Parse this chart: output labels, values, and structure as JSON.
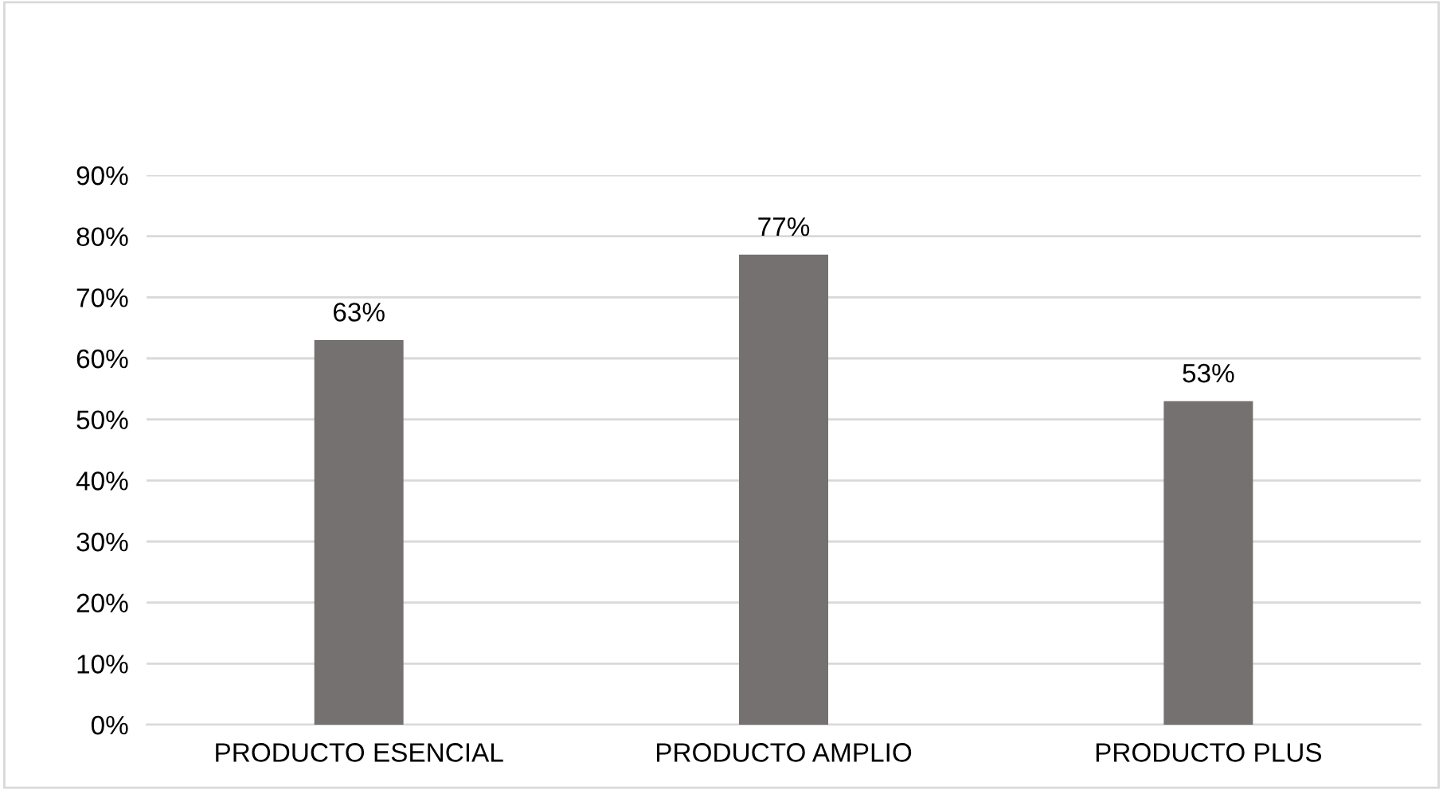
{
  "chart_data": {
    "type": "bar",
    "categories": [
      "PRODUCTO ESENCIAL",
      "PRODUCTO AMPLIO",
      "PRODUCTO PLUS"
    ],
    "values": [
      63,
      77,
      53
    ],
    "color": "#767171",
    "value_labels": [
      "63%",
      "77%",
      "53%"
    ],
    "ylim": [
      0,
      90
    ],
    "yticks": [
      {
        "value": 0,
        "label": "0%"
      },
      {
        "value": 10,
        "label": "10%"
      },
      {
        "value": 20,
        "label": "20%"
      },
      {
        "value": 30,
        "label": "30%"
      },
      {
        "value": 40,
        "label": "40%"
      },
      {
        "value": 50,
        "label": "50%"
      },
      {
        "value": 60,
        "label": "60%"
      },
      {
        "value": 70,
        "label": "70%"
      },
      {
        "value": 80,
        "label": "80%"
      },
      {
        "value": 90,
        "label": "90%"
      }
    ],
    "grid": "y"
  }
}
